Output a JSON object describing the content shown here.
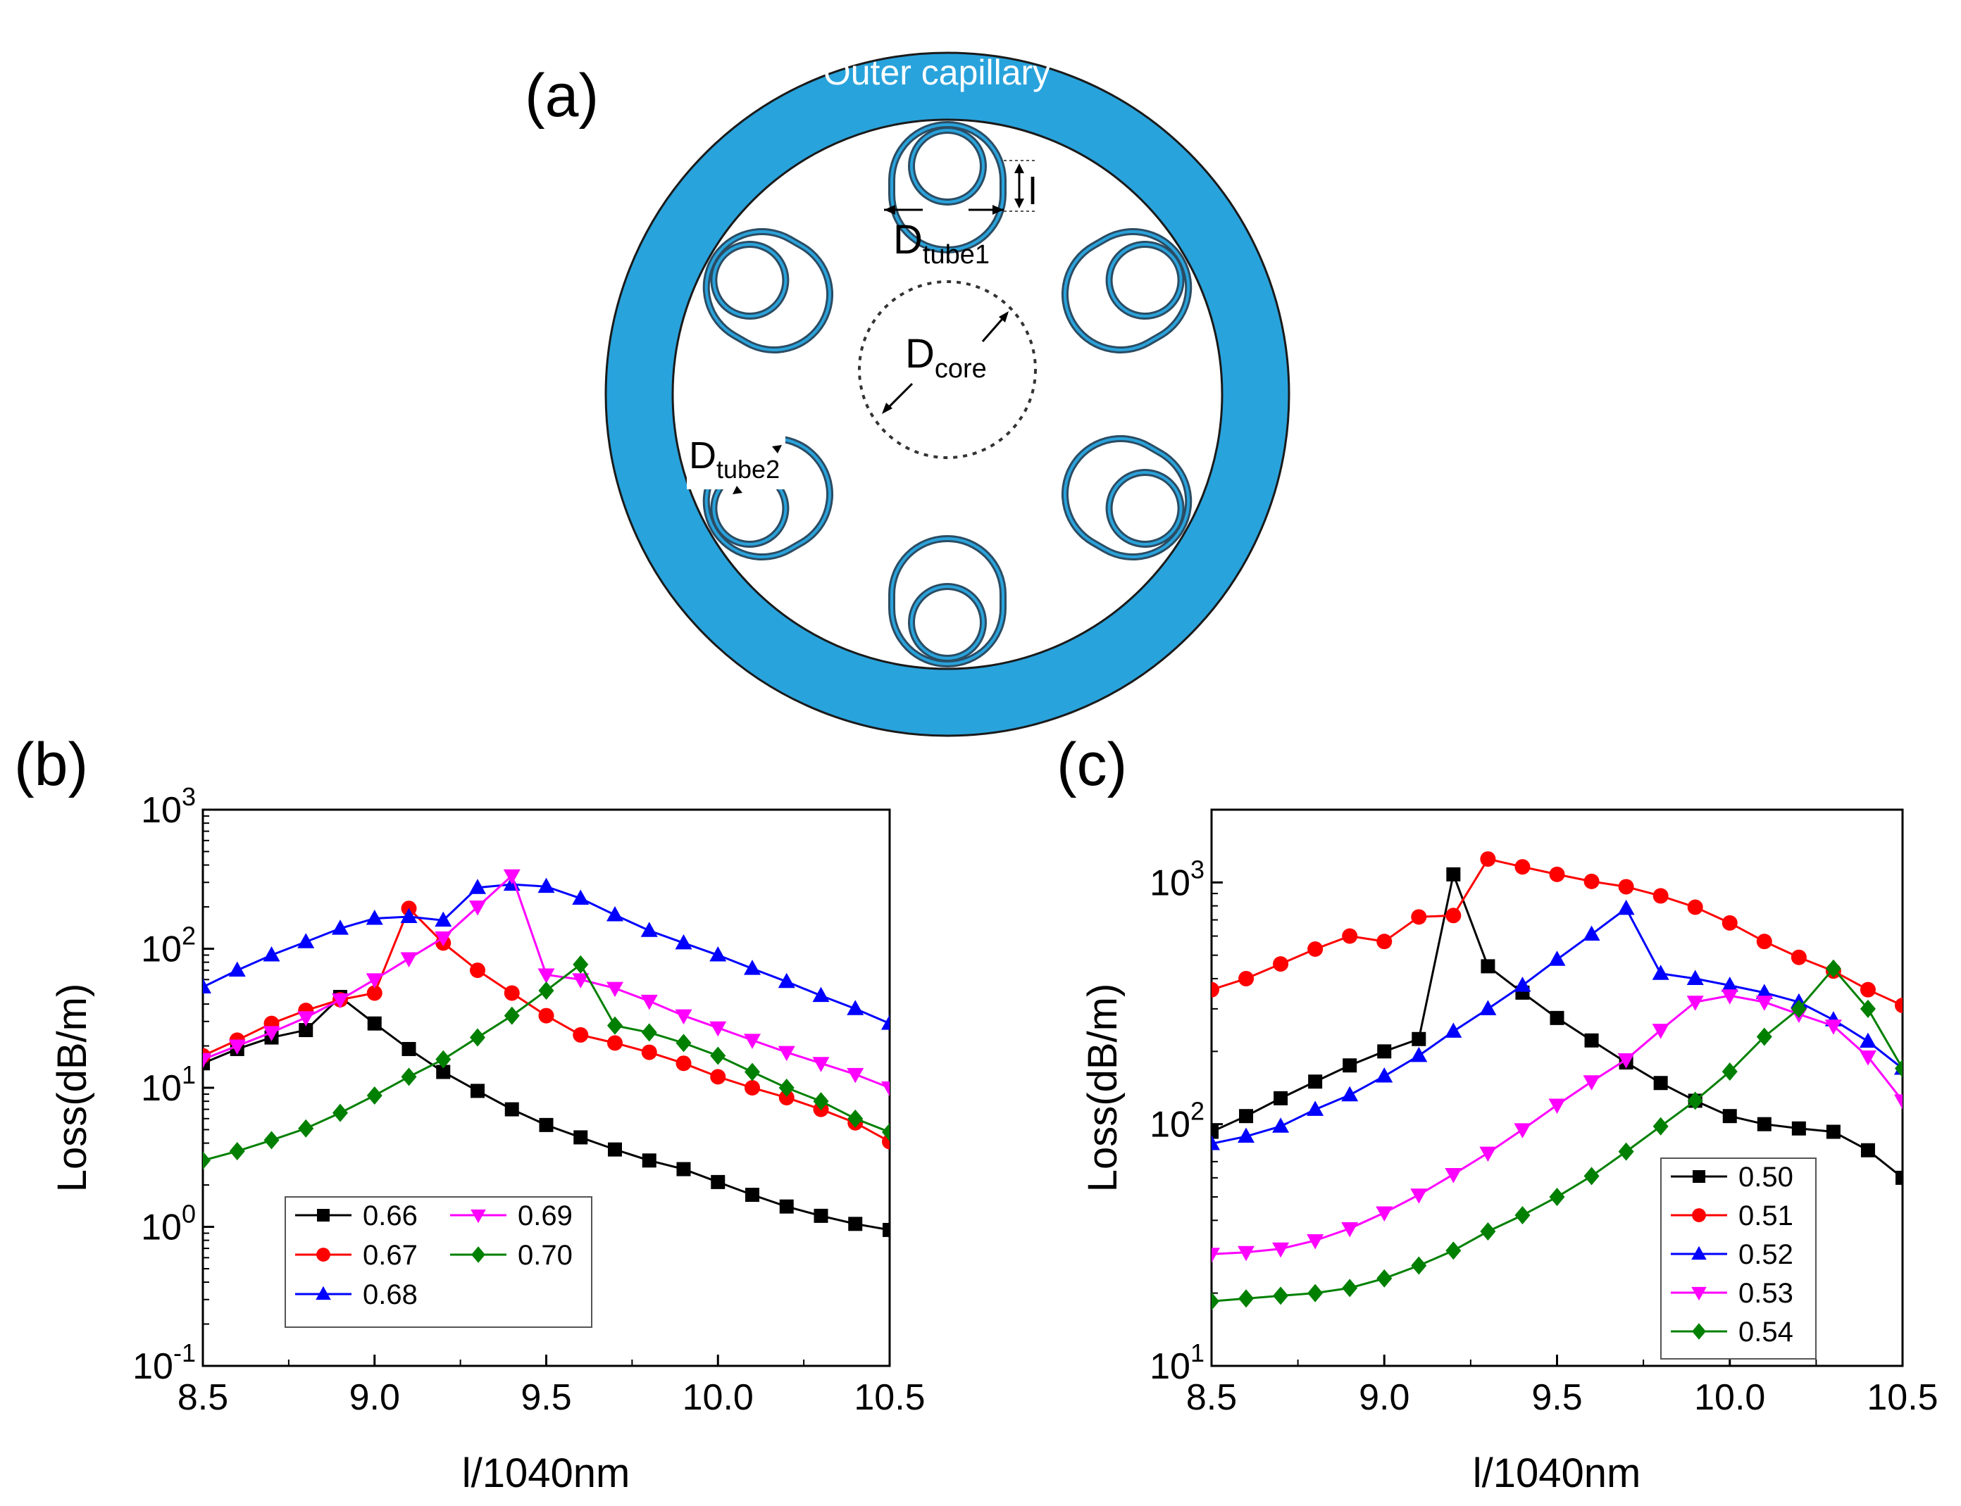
{
  "schematic": {
    "label": "(a)",
    "outer_capillary_label": "Outer capillary",
    "dim_tube1": {
      "main": "D",
      "sub": "tube1"
    },
    "dim_tube2": {
      "main": "D",
      "sub": "tube2"
    },
    "dim_core": {
      "main": "D",
      "sub": "core"
    },
    "dim_l": "l",
    "colors": {
      "capillary": "#29a3dc",
      "tube_edge": "#2b4c63",
      "tube_fill": "#29a3dc"
    }
  },
  "chart_data": [
    {
      "id": "b",
      "label": "(b)",
      "type": "line",
      "scale_y": "log",
      "xlabel": "l/1040nm",
      "ylabel": "Loss(dB/m)",
      "xlim": [
        8.5,
        10.5
      ],
      "ylim": [
        0.1,
        1000
      ],
      "xticks": [
        "8.5",
        "9.0",
        "9.5",
        "10.0",
        "10.5"
      ],
      "yticks": [
        {
          "base": "10",
          "exp": "-1",
          "value": 0.1
        },
        {
          "base": "10",
          "exp": "0",
          "value": 1
        },
        {
          "base": "10",
          "exp": "1",
          "value": 10
        },
        {
          "base": "10",
          "exp": "2",
          "value": 100
        },
        {
          "base": "10",
          "exp": "3",
          "value": 1000
        }
      ],
      "x": [
        8.5,
        8.6,
        8.7,
        8.8,
        8.9,
        9.0,
        9.1,
        9.2,
        9.3,
        9.4,
        9.5,
        9.6,
        9.7,
        9.8,
        9.9,
        10.0,
        10.1,
        10.2,
        10.3,
        10.4,
        10.5
      ],
      "legend": {
        "placement": "bottom-left",
        "columns": 2
      },
      "series": [
        {
          "name": "0.66",
          "color": "#000000",
          "marker": "square",
          "values": [
            15,
            19,
            23,
            26,
            45,
            29,
            19,
            13,
            9.5,
            7,
            5.4,
            4.4,
            3.6,
            3.0,
            2.6,
            2.1,
            1.7,
            1.4,
            1.2,
            1.05,
            0.95
          ]
        },
        {
          "name": "0.67",
          "color": "#ff0000",
          "marker": "circle",
          "values": [
            17,
            22,
            29,
            36,
            43,
            48,
            195,
            110,
            70,
            48,
            33,
            24,
            21,
            18,
            15,
            12,
            10,
            8.5,
            7,
            5.6,
            4.1
          ]
        },
        {
          "name": "0.68",
          "color": "#0000ff",
          "marker": "triangle-up",
          "values": [
            53,
            70,
            90,
            112,
            140,
            165,
            170,
            160,
            275,
            290,
            280,
            230,
            175,
            135,
            110,
            90,
            72,
            58,
            46,
            37,
            29
          ]
        },
        {
          "name": "0.69",
          "color": "#ff00ff",
          "marker": "triangle-down",
          "values": [
            16,
            20,
            25,
            32,
            43,
            60,
            85,
            120,
            200,
            335,
            65,
            60,
            52,
            42,
            33,
            27,
            22,
            18,
            15,
            12.5,
            10
          ]
        },
        {
          "name": "0.70",
          "color": "#008000",
          "marker": "diamond",
          "values": [
            3.0,
            3.5,
            4.2,
            5.1,
            6.6,
            8.8,
            12,
            16,
            23,
            33,
            50,
            77,
            28,
            25,
            21,
            17,
            13,
            10,
            8,
            6,
            4.8
          ]
        }
      ]
    },
    {
      "id": "c",
      "label": "(c)",
      "type": "line",
      "scale_y": "log",
      "xlabel": "l/1040nm",
      "ylabel": "Loss(dB/m)",
      "xlim": [
        8.5,
        10.5
      ],
      "ylim": [
        10,
        2000
      ],
      "xticks": [
        "8.5",
        "9.0",
        "9.5",
        "10.0",
        "10.5"
      ],
      "yticks": [
        {
          "base": "10",
          "exp": "1",
          "value": 10
        },
        {
          "base": "10",
          "exp": "2",
          "value": 100
        },
        {
          "base": "10",
          "exp": "3",
          "value": 1000
        }
      ],
      "x": [
        8.5,
        8.6,
        8.7,
        8.8,
        8.9,
        9.0,
        9.1,
        9.2,
        9.3,
        9.4,
        9.5,
        9.6,
        9.7,
        9.8,
        9.9,
        10.0,
        10.1,
        10.2,
        10.3,
        10.4,
        10.5
      ],
      "legend": {
        "placement": "bottom-right",
        "columns": 1
      },
      "series": [
        {
          "name": "0.50",
          "color": "#000000",
          "marker": "square",
          "values": [
            93,
            108,
            128,
            150,
            175,
            200,
            225,
            1080,
            450,
            350,
            275,
            222,
            180,
            148,
            125,
            108,
            100,
            96,
            93,
            78,
            60
          ]
        },
        {
          "name": "0.51",
          "color": "#ff0000",
          "marker": "circle",
          "values": [
            360,
            400,
            460,
            530,
            600,
            570,
            720,
            730,
            1250,
            1160,
            1080,
            1010,
            960,
            880,
            790,
            680,
            570,
            490,
            430,
            360,
            310
          ]
        },
        {
          "name": "0.52",
          "color": "#0000ff",
          "marker": "triangle-up",
          "values": [
            83,
            89,
            98,
            115,
            132,
            158,
            192,
            242,
            300,
            375,
            480,
            610,
            780,
            420,
            400,
            375,
            350,
            320,
            270,
            220,
            170
          ]
        },
        {
          "name": "0.53",
          "color": "#ff00ff",
          "marker": "triangle-down",
          "values": [
            29,
            29.5,
            30.5,
            33,
            37,
            43,
            51,
            62,
            76,
            95,
            120,
            150,
            185,
            245,
            320,
            340,
            320,
            285,
            255,
            190,
            125
          ]
        },
        {
          "name": "0.54",
          "color": "#008000",
          "marker": "diamond",
          "values": [
            18.5,
            19,
            19.5,
            20,
            21,
            23,
            26,
            30,
            36,
            42,
            50,
            61,
            77,
            98,
            125,
            165,
            230,
            300,
            440,
            300,
            170
          ]
        }
      ]
    }
  ]
}
